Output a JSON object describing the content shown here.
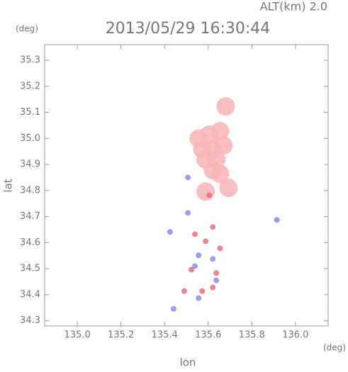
{
  "chart_data": {
    "type": "scatter",
    "title": "2013/05/29 16:30:44",
    "annotation": "ALT(km) 2.0",
    "y_unit": "(deg)",
    "x_unit": "(deg)",
    "x_label": "lon",
    "y_label": "lat",
    "xlim": [
      134.85,
      136.15
    ],
    "ylim": [
      34.28,
      35.36
    ],
    "xticks": [
      {
        "value": 135,
        "label": "135.0"
      },
      135.2,
      135.4,
      135.6,
      135.8,
      {
        "value": 136,
        "label": "136.0"
      }
    ],
    "yticks": [
      34.3,
      34.4,
      34.5,
      34.6,
      34.7,
      34.8,
      34.9,
      {
        "value": 35,
        "label": "35.0"
      },
      35.1,
      35.2,
      35.3
    ],
    "series": [
      {
        "color": "#f7b4b8",
        "x": [
          135.68,
          135.556,
          135.605,
          135.654,
          135.572,
          135.621,
          135.67,
          135.588,
          135.637,
          135.621,
          135.654,
          135.588,
          135.693
        ],
        "y": [
          35.123,
          35.0,
          35.014,
          35.028,
          34.959,
          34.959,
          34.973,
          34.919,
          34.919,
          34.878,
          34.864,
          34.796,
          34.81
        ]
      },
      {
        "color": "#e8707c",
        "x": [
          135.539,
          135.588,
          135.621,
          135.572,
          135.621,
          135.637,
          135.523,
          135.49,
          135.605,
          135.654
        ],
        "y": [
          34.632,
          34.605,
          34.66,
          34.414,
          34.428,
          34.483,
          34.496,
          34.414,
          34.782,
          34.578
        ]
      },
      {
        "color": "#8c8cec",
        "x": [
          135.507,
          135.556,
          135.621,
          135.539,
          135.637,
          135.441,
          135.915,
          135.425,
          135.507,
          135.556
        ],
        "y": [
          34.714,
          34.551,
          34.537,
          34.51,
          34.455,
          34.346,
          34.687,
          34.641,
          34.85,
          34.387
        ]
      }
    ]
  }
}
